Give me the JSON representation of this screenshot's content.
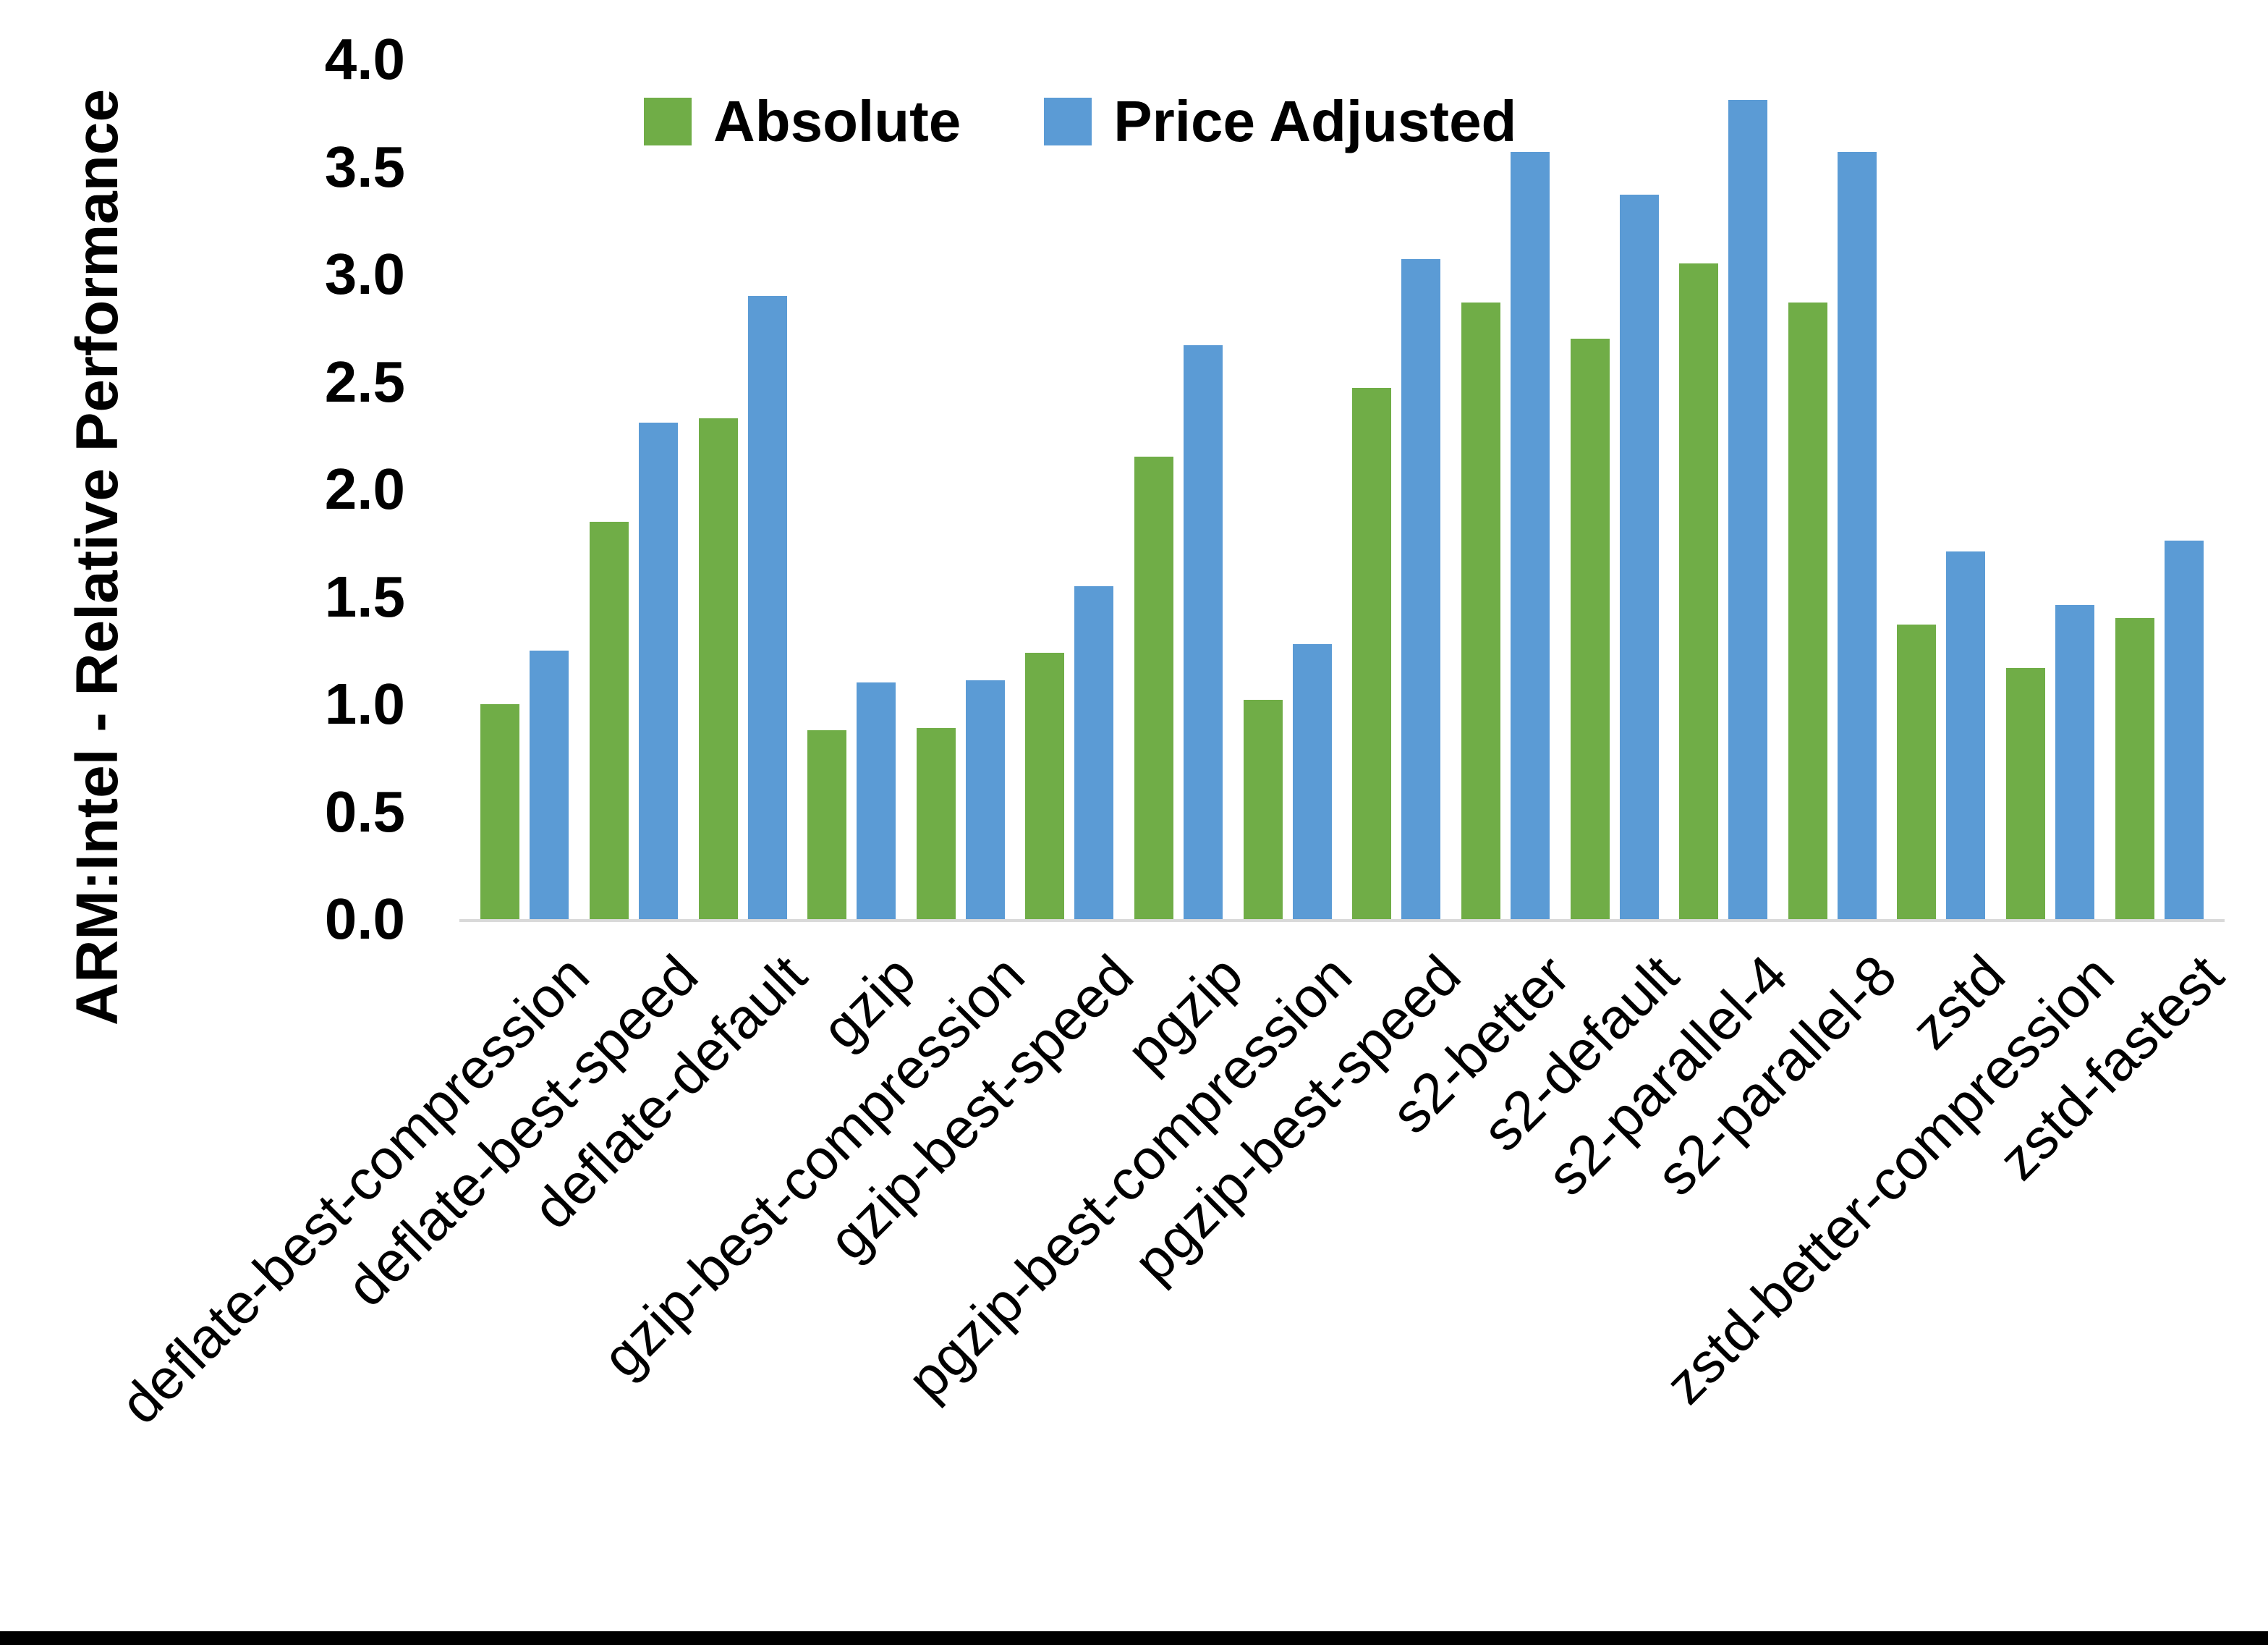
{
  "chart_data": {
    "type": "bar",
    "title": "",
    "ylabel": "ARM:Intel - Relative Performance",
    "xlabel": "",
    "ylim": [
      0,
      4.0
    ],
    "ytick_labels": [
      "0.0",
      "0.5",
      "1.0",
      "1.5",
      "2.0",
      "2.5",
      "3.0",
      "3.5",
      "4.0"
    ],
    "grid": false,
    "legend_position": "top-center",
    "categories": [
      "deflate-best-compression",
      "deflate-best-speed",
      "deflate-default",
      "gzip",
      "gzip-best-compression",
      "gzip-best-speed",
      "pgzip",
      "pgzip-best-compression",
      "pgzip-best-speed",
      "s2-better",
      "s2-default",
      "s2-parallel-4",
      "s2-parallel-8",
      "zstd",
      "zstd-better-compression",
      "zstd-fastest"
    ],
    "series": [
      {
        "name": "Absolute",
        "color": "#70AD47",
        "values": [
          1.0,
          1.85,
          2.33,
          0.88,
          0.89,
          1.24,
          2.15,
          1.02,
          2.47,
          2.87,
          2.7,
          3.05,
          2.87,
          1.37,
          1.17,
          1.4
        ]
      },
      {
        "name": "Price Adjusted",
        "color": "#5B9BD5",
        "values": [
          1.25,
          2.31,
          2.9,
          1.1,
          1.11,
          1.55,
          2.67,
          1.28,
          3.07,
          3.57,
          3.37,
          3.81,
          3.57,
          1.71,
          1.46,
          1.76
        ]
      }
    ],
    "axis_line_color": "#d9d9d9",
    "text_color": "#000000"
  }
}
